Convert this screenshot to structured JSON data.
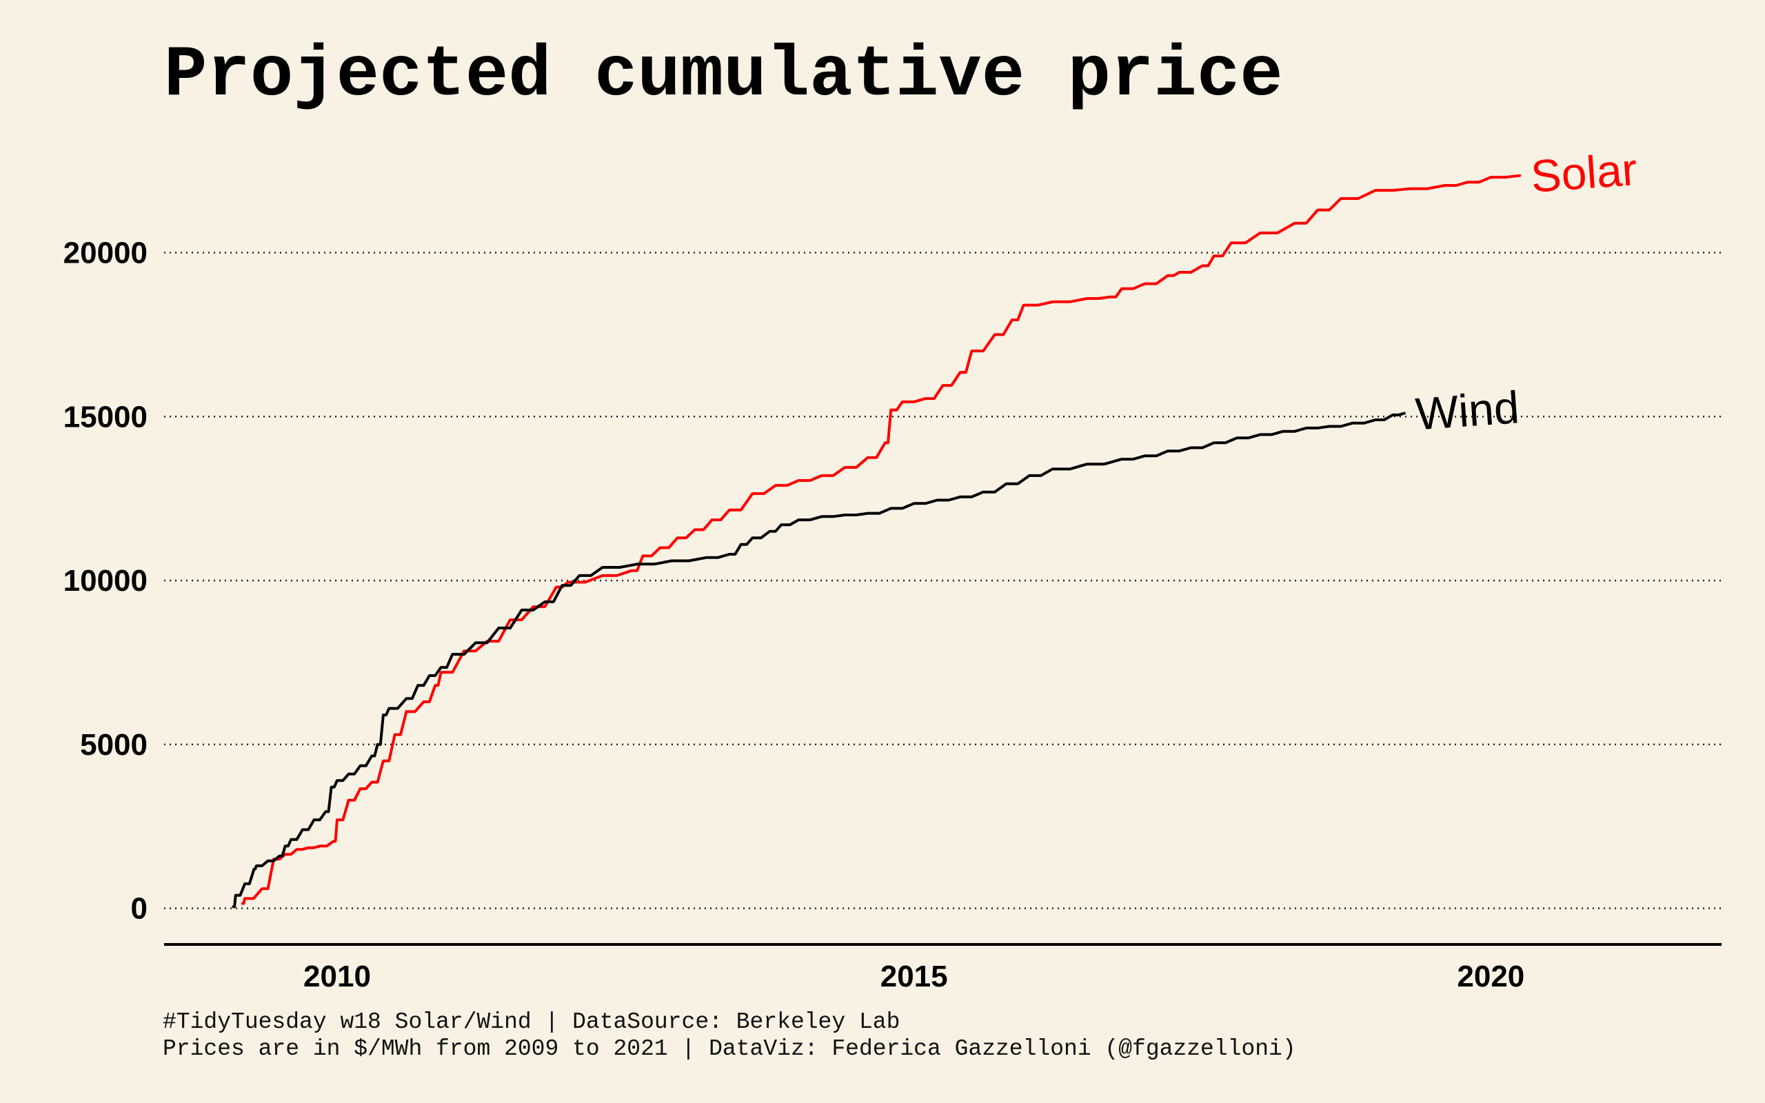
{
  "chart_data": {
    "type": "line",
    "title": "Projected cumulative price",
    "xlabel": "",
    "ylabel": "",
    "xlim": [
      2008.5,
      2022.0
    ],
    "ylim": [
      -1100,
      23500
    ],
    "x_ticks": [
      2010,
      2015,
      2020
    ],
    "x_tick_labels": [
      "2010",
      "2015",
      "2020"
    ],
    "y_ticks": [
      0,
      5000,
      10000,
      15000,
      20000
    ],
    "y_tick_labels": [
      "0",
      "5000",
      "10000",
      "15000",
      "20000"
    ],
    "grid": "horizontal dotted",
    "legend": "direct labels at series ends",
    "series": [
      {
        "name": "Solar",
        "label": "Solar",
        "color": "#ff0000",
        "x": [
          2009.18,
          2009.2,
          2009.35,
          2009.45,
          2009.55,
          2009.65,
          2009.75,
          2009.85,
          2009.97,
          2010.0,
          2010.1,
          2010.2,
          2010.3,
          2010.4,
          2010.5,
          2010.6,
          2010.75,
          2010.85,
          2010.9,
          2011.1,
          2011.3,
          2011.5,
          2011.7,
          2011.9,
          2012.0,
          2012.3,
          2012.55,
          2012.65,
          2012.8,
          2012.95,
          2013.1,
          2013.25,
          2013.4,
          2013.6,
          2013.8,
          2014.0,
          2014.2,
          2014.4,
          2014.6,
          2014.75,
          2014.8,
          2014.9,
          2015.1,
          2015.25,
          2015.4,
          2015.5,
          2015.7,
          2015.85,
          2015.95,
          2016.2,
          2016.5,
          2016.7,
          2016.8,
          2017.0,
          2017.2,
          2017.3,
          2017.5,
          2017.6,
          2017.75,
          2018.0,
          2018.3,
          2018.5,
          2018.7,
          2019.0,
          2019.3,
          2019.6,
          2019.8,
          2020.0,
          2020.25
        ],
        "values": [
          150,
          300,
          600,
          1500,
          1650,
          1800,
          1850,
          1900,
          2050,
          2700,
          3300,
          3650,
          3850,
          4500,
          5300,
          6000,
          6300,
          6800,
          7200,
          7850,
          8150,
          8800,
          9200,
          9800,
          9950,
          10150,
          10300,
          10750,
          11000,
          11300,
          11550,
          11850,
          12150,
          12650,
          12900,
          13050,
          13200,
          13450,
          13750,
          14200,
          15200,
          15450,
          15550,
          15950,
          16350,
          17000,
          17500,
          17950,
          18400,
          18500,
          18600,
          18650,
          18900,
          19050,
          19300,
          19400,
          19600,
          19900,
          20300,
          20600,
          20900,
          21300,
          21650,
          21900,
          21950,
          22050,
          22150,
          22300,
          22350
        ]
      },
      {
        "name": "Wind",
        "label": "Wind",
        "color": "#000000",
        "x": [
          2009.1,
          2009.12,
          2009.2,
          2009.28,
          2009.3,
          2009.4,
          2009.5,
          2009.55,
          2009.6,
          2009.7,
          2009.8,
          2009.9,
          2009.95,
          2010.0,
          2010.1,
          2010.2,
          2010.3,
          2010.35,
          2010.4,
          2010.45,
          2010.6,
          2010.7,
          2010.8,
          2010.9,
          2011.0,
          2011.2,
          2011.4,
          2011.6,
          2011.8,
          2011.95,
          2012.1,
          2012.3,
          2012.6,
          2012.9,
          2013.2,
          2013.4,
          2013.5,
          2013.6,
          2013.75,
          2013.85,
          2014.0,
          2014.2,
          2014.4,
          2014.6,
          2014.8,
          2015.0,
          2015.2,
          2015.4,
          2015.6,
          2015.8,
          2016.0,
          2016.2,
          2016.5,
          2016.8,
          2017.0,
          2017.2,
          2017.4,
          2017.6,
          2017.8,
          2018.0,
          2018.2,
          2018.4,
          2018.6,
          2018.8,
          2019.0,
          2019.15,
          2019.25
        ],
        "values": [
          50,
          400,
          750,
          1200,
          1300,
          1450,
          1600,
          1900,
          2100,
          2400,
          2700,
          2950,
          3700,
          3900,
          4100,
          4350,
          4650,
          5000,
          5900,
          6100,
          6400,
          6800,
          7100,
          7350,
          7750,
          8100,
          8550,
          9100,
          9350,
          9850,
          10150,
          10400,
          10500,
          10600,
          10700,
          10800,
          11100,
          11300,
          11500,
          11700,
          11850,
          11950,
          12000,
          12050,
          12200,
          12350,
          12450,
          12550,
          12700,
          12950,
          13200,
          13400,
          13550,
          13700,
          13800,
          13950,
          14050,
          14200,
          14350,
          14450,
          14550,
          14650,
          14700,
          14800,
          14900,
          15050,
          15100
        ]
      }
    ],
    "caption_lines": [
      "#TidyTuesday w18 Solar/Wind | DataSource: Berkeley Lab",
      "Prices are in $/MWh from 2009 to 2021 | DataViz: Federica Gazzelloni (@fgazzelloni)"
    ]
  }
}
